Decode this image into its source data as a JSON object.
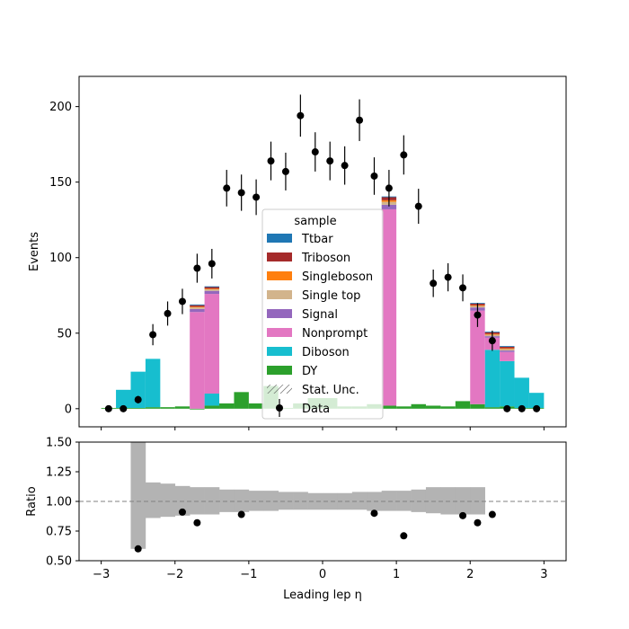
{
  "chart_data": [
    {
      "type": "bar",
      "stacked": true,
      "xlabel": "",
      "ylabel": "Events",
      "xlim": [
        -3.3,
        3.3
      ],
      "ylim": [
        -12,
        220
      ],
      "yticks": [
        0,
        50,
        100,
        150,
        200
      ],
      "grid": false,
      "legend": {
        "title": "sample",
        "placement": "center-bottom",
        "entries": [
          {
            "label": "Ttbar",
            "color": "#1f77b4",
            "kind": "patch"
          },
          {
            "label": "Triboson",
            "color": "#a52a2a",
            "kind": "patch"
          },
          {
            "label": "Singleboson",
            "color": "#ff7f0e",
            "kind": "patch"
          },
          {
            "label": "Single top",
            "color": "#d2b48c",
            "kind": "patch"
          },
          {
            "label": "Signal",
            "color": "#9467bd",
            "kind": "patch"
          },
          {
            "label": "Nonprompt",
            "color": "#e377c2",
            "kind": "patch"
          },
          {
            "label": "Diboson",
            "color": "#17becf",
            "kind": "patch"
          },
          {
            "label": "DY",
            "color": "#2ca02c",
            "kind": "patch"
          },
          {
            "label": "Stat. Unc.",
            "color": "#555555",
            "kind": "hatch"
          },
          {
            "label": "Data",
            "color": "#000000",
            "kind": "marker"
          }
        ]
      },
      "bin_edges": [
        -3.0,
        -2.8,
        -2.6,
        -2.4,
        -2.2,
        -2.0,
        -1.8,
        -1.6,
        -1.4,
        -1.2,
        -1.0,
        -0.8,
        -0.6,
        -0.4,
        -0.2,
        0.0,
        0.2,
        0.4,
        0.6,
        0.8,
        1.0,
        1.2,
        1.4,
        1.6,
        1.8,
        2.0,
        2.2,
        2.4,
        2.6,
        2.8,
        3.0
      ],
      "series": [
        {
          "name": "DY",
          "color": "#2ca02c",
          "values": [
            0.5,
            0.5,
            0.5,
            1,
            1,
            1.5,
            -0.5,
            2,
            3.5,
            11,
            3.5,
            15,
            0.5,
            3.5,
            7,
            7,
            1.5,
            1.5,
            3,
            2,
            1.5,
            3,
            2,
            1.5,
            5,
            3,
            1,
            1.5,
            0.5,
            0.5
          ]
        },
        {
          "name": "Diboson",
          "color": "#17becf",
          "values": [
            0,
            12,
            24,
            32,
            0,
            0,
            0,
            8,
            0,
            0,
            0,
            0,
            0,
            0,
            0,
            0,
            0,
            0,
            0,
            0,
            0,
            0,
            0,
            0,
            0,
            0,
            38,
            30,
            20,
            10
          ]
        },
        {
          "name": "Nonprompt",
          "color": "#e377c2",
          "values": [
            0,
            0,
            0,
            0,
            0,
            0,
            64,
            66,
            0,
            0,
            0,
            0,
            0,
            0,
            0,
            0,
            0,
            0,
            0,
            130,
            0,
            0,
            0,
            0,
            0,
            62,
            8,
            6,
            0,
            0
          ]
        },
        {
          "name": "Signal",
          "color": "#9467bd",
          "values": [
            0,
            0,
            0,
            0,
            0,
            0,
            2,
            2,
            0,
            0,
            0,
            0,
            0,
            0,
            0,
            0,
            0,
            0,
            0,
            3,
            0,
            0,
            0,
            0,
            0,
            2,
            1,
            1,
            0,
            0
          ]
        },
        {
          "name": "Single top",
          "color": "#d2b48c",
          "values": [
            0,
            0,
            0,
            0,
            0,
            0,
            1,
            1,
            0,
            0,
            0,
            0,
            0,
            0,
            0,
            0,
            0,
            0,
            0,
            2,
            0,
            0,
            0,
            0,
            0,
            1,
            1,
            1,
            0,
            0
          ]
        },
        {
          "name": "Singleboson",
          "color": "#ff7f0e",
          "values": [
            0,
            0,
            0,
            0,
            0,
            0,
            0.5,
            0.5,
            0,
            0,
            0,
            0,
            0,
            0,
            0,
            0,
            0,
            0,
            0,
            1,
            0,
            0,
            0,
            0,
            0,
            0.5,
            0.5,
            0.5,
            0,
            0
          ]
        },
        {
          "name": "Triboson",
          "color": "#a52a2a",
          "values": [
            0,
            0,
            0,
            0,
            0,
            0,
            1,
            1,
            0,
            0,
            0,
            0,
            0,
            0,
            0,
            0,
            0,
            0,
            0,
            2,
            0,
            0,
            0,
            0,
            0,
            1,
            1,
            1,
            0,
            0
          ]
        },
        {
          "name": "Ttbar",
          "color": "#1f77b4",
          "values": [
            0,
            0,
            0,
            0,
            0,
            0,
            0.5,
            0.5,
            0,
            0,
            0,
            0,
            0,
            0,
            0,
            0,
            0,
            0,
            0,
            0.5,
            0,
            0,
            0,
            0,
            0,
            0.5,
            0.5,
            0.5,
            0,
            0
          ]
        }
      ],
      "data_points": {
        "name": "Data",
        "x": [
          -2.9,
          -2.7,
          -2.5,
          -2.3,
          -2.1,
          -1.9,
          -1.7,
          -1.5,
          -1.3,
          -1.1,
          -0.9,
          -0.7,
          -0.5,
          -0.3,
          -0.1,
          0.1,
          0.3,
          0.5,
          0.7,
          0.9,
          1.1,
          1.3,
          1.5,
          1.7,
          1.9,
          2.1,
          2.3,
          2.5,
          2.7,
          2.9
        ],
        "y": [
          0,
          0,
          6,
          49,
          63,
          71,
          93,
          96,
          146,
          143,
          140,
          164,
          157,
          194,
          170,
          164,
          161,
          191,
          154,
          146,
          168,
          134,
          83,
          87,
          80,
          62,
          45,
          0,
          0,
          0
        ],
        "yerr": [
          0,
          0,
          2.5,
          7,
          8,
          8.4,
          9.6,
          9.8,
          12.1,
          12,
          11.8,
          12.8,
          12.5,
          13.9,
          13,
          12.8,
          12.7,
          13.8,
          12.4,
          12.1,
          13,
          11.6,
          9.1,
          9.3,
          8.9,
          7.9,
          6.7,
          0,
          0,
          0
        ]
      }
    },
    {
      "type": "scatter",
      "xlabel": "Leading lep η",
      "ylabel": "Ratio",
      "xlim": [
        -3.3,
        3.3
      ],
      "ylim": [
        0.5,
        1.5
      ],
      "xticks": [
        -3,
        -2,
        -1,
        0,
        1,
        2,
        3
      ],
      "yticks": [
        "0.50",
        "0.75",
        "1.00",
        "1.25",
        "1.50"
      ],
      "reference_line": 1.0,
      "grid": false,
      "unc_band": {
        "color": "#b3b3b3",
        "bin_edges": [
          -2.6,
          -2.4,
          -2.2,
          -2.0,
          -1.8,
          -1.6,
          -1.4,
          -1.2,
          -1.0,
          -0.8,
          -0.6,
          -0.4,
          -0.2,
          0.0,
          0.2,
          0.4,
          0.6,
          0.8,
          1.0,
          1.2,
          1.4,
          1.6,
          1.8,
          2.0,
          2.2
        ],
        "low": [
          0.6,
          0.86,
          0.87,
          0.88,
          0.89,
          0.89,
          0.91,
          0.91,
          0.92,
          0.92,
          0.93,
          0.93,
          0.93,
          0.93,
          0.93,
          0.93,
          0.92,
          0.92,
          0.92,
          0.91,
          0.9,
          0.89,
          0.89,
          0.89
        ],
        "high": [
          1.5,
          1.16,
          1.15,
          1.13,
          1.12,
          1.12,
          1.1,
          1.1,
          1.09,
          1.09,
          1.08,
          1.08,
          1.07,
          1.07,
          1.07,
          1.08,
          1.08,
          1.09,
          1.09,
          1.1,
          1.12,
          1.12,
          1.12,
          1.12
        ]
      },
      "x": [
        -2.5,
        -1.9,
        -1.7,
        -1.1,
        0.7,
        1.1,
        1.9,
        2.1,
        2.3
      ],
      "y": [
        0.6,
        0.91,
        0.82,
        0.89,
        0.9,
        0.71,
        0.88,
        0.82,
        0.89
      ]
    }
  ]
}
